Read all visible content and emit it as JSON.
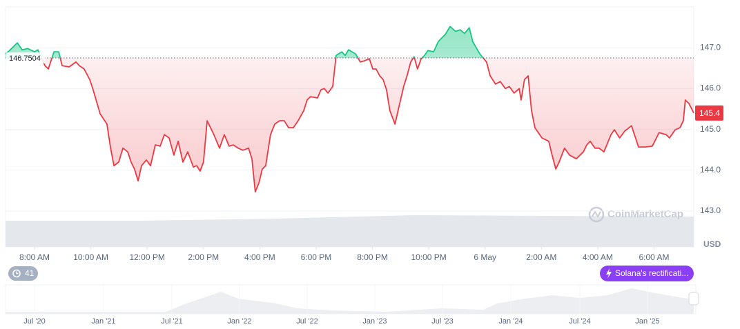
{
  "chart_data": {
    "type": "line",
    "baseline": 146.7504,
    "current_price": 145.4,
    "currency": "USD",
    "xlim": [
      6.97,
      31.41
    ],
    "xticks": [
      {
        "value": 8,
        "label": "8:00 AM"
      },
      {
        "value": 10,
        "label": "10:00 AM"
      },
      {
        "value": 12,
        "label": "12:00 PM"
      },
      {
        "value": 14,
        "label": "2:00 PM"
      },
      {
        "value": 16,
        "label": "4:00 PM"
      },
      {
        "value": 18,
        "label": "6:00 PM"
      },
      {
        "value": 20,
        "label": "8:00 PM"
      },
      {
        "value": 22,
        "label": "10:00 PM"
      },
      {
        "value": 24,
        "label": "6 May"
      },
      {
        "value": 26,
        "label": "2:00 AM"
      },
      {
        "value": 28,
        "label": "4:00 AM"
      },
      {
        "value": 30,
        "label": "6:00 AM"
      }
    ],
    "ylim": [
      143,
      148
    ],
    "yticks": [
      {
        "value": 143,
        "label": "143.0"
      },
      {
        "value": 144,
        "label": "144.0"
      },
      {
        "value": 145,
        "label": "145.0"
      },
      {
        "value": 146,
        "label": "146.0"
      },
      {
        "value": 147,
        "label": "147.0"
      }
    ],
    "grid": true,
    "up_color": "#16c784",
    "down_color": "#ea3943",
    "x": [
      6.97,
      7.14,
      7.39,
      7.56,
      7.76,
      8.0,
      8.12,
      8.37,
      8.49,
      8.69,
      8.86,
      8.98,
      9.23,
      9.47,
      9.59,
      9.76,
      9.96,
      10.08,
      10.33,
      10.57,
      10.7,
      10.82,
      10.99,
      11.14,
      11.31,
      11.43,
      11.55,
      11.68,
      11.8,
      11.97,
      12.12,
      12.29,
      12.46,
      12.61,
      12.78,
      12.95,
      13.1,
      13.27,
      13.44,
      13.64,
      13.76,
      13.88,
      14.0,
      14.13,
      14.25,
      14.37,
      14.57,
      14.74,
      14.91,
      15.06,
      15.23,
      15.4,
      15.6,
      15.72,
      15.84,
      15.97,
      16.09,
      16.21,
      16.38,
      16.53,
      16.7,
      16.87,
      17.02,
      17.19,
      17.36,
      17.56,
      17.68,
      17.8,
      18.05,
      18.17,
      18.29,
      18.42,
      18.59,
      18.71,
      18.91,
      19.03,
      19.15,
      19.4,
      19.57,
      19.72,
      19.89,
      20.01,
      20.13,
      20.26,
      20.38,
      20.5,
      20.62,
      20.8,
      20.94,
      21.11,
      21.24,
      21.36,
      21.48,
      21.6,
      21.73,
      21.85,
      21.97,
      22.17,
      22.34,
      22.46,
      22.58,
      22.76,
      22.95,
      23.12,
      23.27,
      23.44,
      23.56,
      23.81,
      24.05,
      24.18,
      24.37,
      24.54,
      24.72,
      24.86,
      25.03,
      25.21,
      25.28,
      25.4,
      25.53,
      25.65,
      25.77,
      26.02,
      26.26,
      26.38,
      26.51,
      26.63,
      26.82,
      27.0,
      27.24,
      27.49,
      27.61,
      27.73,
      27.9,
      28.05,
      28.22,
      28.47,
      28.59,
      28.78,
      28.96,
      29.2,
      29.45,
      29.69,
      29.94,
      30.18,
      30.43,
      30.55,
      30.75,
      30.92,
      31.04,
      31.11,
      31.24,
      31.41
    ],
    "series": [
      {
        "name": "Price",
        "values": [
          146.85,
          146.95,
          147.12,
          146.95,
          146.98,
          146.9,
          146.95,
          146.56,
          146.48,
          146.9,
          146.9,
          146.56,
          146.53,
          146.65,
          146.56,
          146.48,
          146.22,
          145.97,
          145.38,
          145.13,
          144.54,
          144.11,
          144.2,
          144.54,
          144.45,
          144.2,
          144.03,
          143.74,
          144.11,
          144.25,
          144.11,
          144.62,
          144.59,
          144.87,
          144.79,
          144.37,
          144.71,
          144.2,
          144.45,
          144.08,
          144.11,
          143.98,
          144.2,
          145.21,
          145.04,
          144.87,
          144.54,
          144.87,
          144.59,
          144.62,
          144.54,
          144.49,
          144.54,
          144.28,
          143.47,
          143.69,
          144.03,
          144.11,
          144.87,
          145.13,
          145.21,
          145.21,
          145.04,
          145.04,
          145.21,
          145.46,
          145.72,
          145.8,
          145.77,
          145.97,
          146.0,
          145.89,
          146.05,
          146.81,
          146.9,
          146.81,
          146.95,
          146.85,
          146.65,
          146.68,
          146.73,
          146.48,
          146.48,
          146.31,
          146.22,
          145.97,
          145.46,
          145.13,
          145.55,
          146.05,
          146.34,
          146.65,
          146.78,
          146.48,
          146.73,
          146.81,
          146.93,
          146.9,
          147.15,
          147.24,
          147.32,
          147.52,
          147.4,
          147.44,
          147.35,
          147.49,
          147.15,
          146.85,
          146.65,
          146.31,
          146.11,
          146.17,
          146.0,
          146.05,
          145.89,
          146.0,
          145.72,
          146.22,
          146.31,
          145.46,
          145.04,
          144.79,
          144.71,
          144.37,
          144.03,
          144.2,
          144.54,
          144.37,
          144.28,
          144.45,
          144.62,
          144.71,
          144.54,
          144.54,
          144.45,
          144.87,
          144.99,
          144.79,
          144.96,
          145.09,
          144.57,
          144.57,
          144.59,
          144.92,
          144.87,
          144.79,
          144.99,
          145.04,
          145.21,
          145.72,
          145.63,
          145.4
        ]
      }
    ]
  },
  "watermark": "CoinMarketCap",
  "events_count": 41,
  "news_tag": "Solana's rectificati...",
  "navigator_labels": [
    "Jul '20",
    "Jan '21",
    "Jul '21",
    "Jan '22",
    "Jul '22",
    "Jan '23",
    "Jul '23",
    "Jan '24",
    "Jul '24",
    "Jan '25"
  ]
}
